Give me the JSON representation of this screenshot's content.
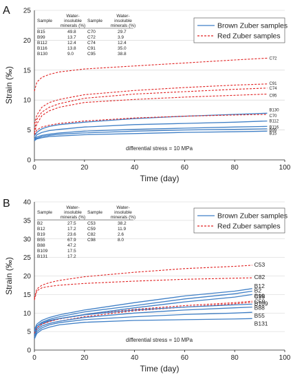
{
  "chart_data": [
    {
      "panel": "A",
      "type": "line",
      "xlabel": "Time (day)",
      "ylabel": "Strain (‰)",
      "xlim": [
        0,
        100
      ],
      "ylim": [
        0,
        25
      ],
      "xticks": [
        "0",
        "20",
        "40",
        "60",
        "80",
        "100"
      ],
      "yticks": [
        "0",
        "5",
        "10",
        "15",
        "20",
        "25"
      ],
      "grid": "horizontal",
      "legend": [
        "Brown Zuber samples",
        "Red Zuber samples"
      ],
      "legend_position": "top-right",
      "annotation": "differential stress = 10 MPa",
      "table": {
        "headers": [
          "Sample",
          "Water-insoluble minerals (%)",
          "Sample",
          "Water-insoluble minerals (%)"
        ],
        "rows": [
          [
            "B15",
            "49.8",
            "C70",
            "29.7"
          ],
          [
            "B99",
            "13.7",
            "C72",
            "3.9"
          ],
          [
            "B112",
            "12.4",
            "C74",
            "12.4"
          ],
          [
            "B116",
            "13.8",
            "C91",
            "35.0"
          ],
          [
            "B130",
            "9.0",
            "C95",
            "38.8"
          ]
        ]
      },
      "series": [
        {
          "name": "C72",
          "group": "red",
          "x": [
            0,
            1,
            3,
            6,
            10,
            20,
            40,
            60,
            80,
            93
          ],
          "y": [
            11.5,
            13.0,
            13.8,
            14.3,
            14.7,
            15.2,
            15.7,
            16.2,
            16.7,
            17.0
          ]
        },
        {
          "name": "C91",
          "group": "red",
          "x": [
            0,
            1,
            3,
            6,
            10,
            20,
            40,
            60,
            80,
            93
          ],
          "y": [
            6.0,
            7.5,
            8.8,
            9.6,
            10.1,
            10.9,
            11.6,
            12.1,
            12.5,
            12.7
          ]
        },
        {
          "name": "C74",
          "group": "red",
          "x": [
            0,
            1,
            3,
            6,
            10,
            20,
            40,
            60,
            80,
            93
          ],
          "y": [
            5.0,
            6.8,
            8.0,
            8.8,
            9.4,
            10.3,
            11.0,
            11.4,
            11.8,
            12.0
          ]
        },
        {
          "name": "C95",
          "group": "red",
          "x": [
            0,
            1,
            3,
            6,
            10,
            20,
            40,
            60,
            80,
            93
          ],
          "y": [
            4.5,
            6.0,
            7.4,
            8.2,
            8.8,
            9.6,
            10.1,
            10.5,
            10.8,
            11.0
          ]
        },
        {
          "name": "B130",
          "group": "brown",
          "x": [
            0,
            1,
            3,
            6,
            10,
            20,
            40,
            60,
            80,
            93
          ],
          "y": [
            4.0,
            4.6,
            5.2,
            5.6,
            5.9,
            6.3,
            6.9,
            7.3,
            7.6,
            7.8
          ]
        },
        {
          "name": "C70",
          "group": "red",
          "x": [
            0,
            1,
            3,
            6,
            10,
            20,
            40,
            60,
            80,
            93
          ],
          "y": [
            4.2,
            5.0,
            5.5,
            5.8,
            6.1,
            6.5,
            7.0,
            7.3,
            7.5,
            7.6
          ]
        },
        {
          "name": "B112",
          "group": "brown",
          "x": [
            0,
            1,
            3,
            6,
            10,
            20,
            40,
            60,
            80,
            93
          ],
          "y": [
            3.5,
            4.2,
            4.6,
            4.9,
            5.1,
            5.5,
            5.9,
            6.1,
            6.3,
            6.5
          ]
        },
        {
          "name": "B116",
          "group": "brown",
          "x": [
            0,
            1,
            3,
            6,
            10,
            20,
            40,
            60,
            80,
            93
          ],
          "y": [
            3.4,
            3.8,
            4.1,
            4.3,
            4.5,
            4.8,
            5.1,
            5.3,
            5.5,
            5.6
          ]
        },
        {
          "name": "B99",
          "group": "brown",
          "x": [
            0,
            1,
            3,
            6,
            10,
            20,
            40,
            60,
            80,
            93
          ],
          "y": [
            3.3,
            3.6,
            3.9,
            4.1,
            4.3,
            4.5,
            4.8,
            5.0,
            5.1,
            5.2
          ]
        },
        {
          "name": "B15",
          "group": "brown",
          "x": [
            0,
            1,
            3,
            6,
            10,
            20,
            40,
            60,
            80,
            93
          ],
          "y": [
            3.2,
            3.5,
            3.7,
            3.9,
            4.0,
            4.2,
            4.4,
            4.6,
            4.7,
            4.8
          ]
        }
      ],
      "colors": {
        "brown": "#3f7fc6",
        "red": "#e02020"
      }
    },
    {
      "panel": "B",
      "type": "line",
      "xlabel": "Time (day)",
      "ylabel": "Strain (‰)",
      "xlim": [
        0,
        100
      ],
      "ylim": [
        0,
        40
      ],
      "xticks": [
        "0",
        "20",
        "40",
        "60",
        "80",
        "100"
      ],
      "yticks": [
        "0",
        "5",
        "10",
        "15",
        "20",
        "25",
        "30",
        "35",
        "40"
      ],
      "grid": "horizontal",
      "legend": [
        "Brown Zuber samples",
        "Red Zuber samples"
      ],
      "legend_position": "top-right",
      "annotation": "differential stress = 10 MPa",
      "table": {
        "headers": [
          "Sample",
          "Water-insoluble minerals (%)",
          "Sample",
          "Water-insoluble minerals (%)"
        ],
        "rows": [
          [
            "B2",
            "27.5",
            "C53",
            "38.2"
          ],
          [
            "B12",
            "17.2",
            "C59",
            "11.9"
          ],
          [
            "B19",
            "23.6",
            "C82",
            "2.6"
          ],
          [
            "B55",
            "67.9",
            "C98",
            "8.0"
          ],
          [
            "B88",
            "47.2",
            "",
            ""
          ],
          [
            "B109",
            "17.5",
            "",
            ""
          ],
          [
            "B131",
            "17.2",
            "",
            ""
          ]
        ]
      },
      "series": [
        {
          "name": "C53",
          "group": "red",
          "x": [
            0,
            1,
            3,
            6,
            10,
            20,
            40,
            60,
            80,
            87
          ],
          "y": [
            14.0,
            16.5,
            17.5,
            18.2,
            18.8,
            19.8,
            21.0,
            22.0,
            22.6,
            22.9
          ]
        },
        {
          "name": "C82",
          "group": "red",
          "x": [
            0,
            1,
            3,
            6,
            10,
            20,
            40,
            60,
            80,
            87
          ],
          "y": [
            13.5,
            16.0,
            16.8,
            17.2,
            17.5,
            18.0,
            18.6,
            19.1,
            19.4,
            19.5
          ]
        },
        {
          "name": "B12",
          "group": "brown",
          "x": [
            0,
            1,
            3,
            6,
            10,
            20,
            40,
            60,
            80,
            87
          ],
          "y": [
            5.5,
            7.0,
            8.0,
            8.8,
            9.5,
            10.8,
            12.8,
            14.6,
            15.9,
            16.6
          ]
        },
        {
          "name": "B2",
          "group": "brown",
          "x": [
            0,
            1,
            3,
            6,
            10,
            20,
            40,
            60,
            80,
            87
          ],
          "y": [
            5.0,
            6.5,
            7.5,
            8.3,
            9.0,
            10.3,
            12.0,
            13.8,
            15.2,
            15.9
          ]
        },
        {
          "name": "B19",
          "group": "brown",
          "x": [
            0,
            1,
            3,
            6,
            10,
            20,
            40,
            60,
            80,
            87
          ],
          "y": [
            4.5,
            6.0,
            7.0,
            7.8,
            8.5,
            9.6,
            11.4,
            13.0,
            14.3,
            15.0
          ]
        },
        {
          "name": "C59",
          "group": "red",
          "x": [
            0,
            1,
            3,
            6,
            10,
            20,
            40,
            60,
            80,
            87
          ],
          "y": [
            4.0,
            5.5,
            6.5,
            7.2,
            7.8,
            9.0,
            10.6,
            11.6,
            12.5,
            12.9
          ]
        },
        {
          "name": "C98",
          "group": "red",
          "x": [
            0,
            1,
            3,
            6,
            10,
            20,
            40,
            60,
            80,
            87
          ],
          "y": [
            4.5,
            6.0,
            7.0,
            7.7,
            8.4,
            9.5,
            11.0,
            12.0,
            12.8,
            13.2
          ]
        },
        {
          "name": "B109",
          "group": "brown",
          "x": [
            0,
            1,
            3,
            6,
            10,
            20,
            40,
            60,
            80,
            87
          ],
          "y": [
            5.0,
            6.5,
            7.3,
            8.0,
            8.5,
            9.5,
            10.8,
            11.6,
            12.2,
            12.4
          ]
        },
        {
          "name": "B88",
          "group": "brown",
          "x": [
            0,
            1,
            3,
            6,
            10,
            20,
            40,
            60,
            80,
            87
          ],
          "y": [
            4.0,
            5.5,
            6.5,
            7.2,
            7.8,
            8.8,
            10.0,
            10.8,
            11.4,
            11.6
          ]
        },
        {
          "name": "B55",
          "group": "brown",
          "x": [
            0,
            1,
            3,
            6,
            10,
            20,
            40,
            60,
            80,
            87
          ],
          "y": [
            3.5,
            5.0,
            6.0,
            6.8,
            7.4,
            8.2,
            9.0,
            9.6,
            10.0,
            10.2
          ]
        },
        {
          "name": "B131",
          "group": "brown",
          "x": [
            0,
            1,
            3,
            6,
            10,
            20,
            40,
            60,
            80,
            87
          ],
          "y": [
            3.0,
            4.5,
            5.5,
            6.2,
            6.8,
            7.5,
            8.0,
            8.2,
            8.4,
            8.5
          ]
        }
      ],
      "colors": {
        "brown": "#3f7fc6",
        "red": "#e02020"
      }
    }
  ]
}
